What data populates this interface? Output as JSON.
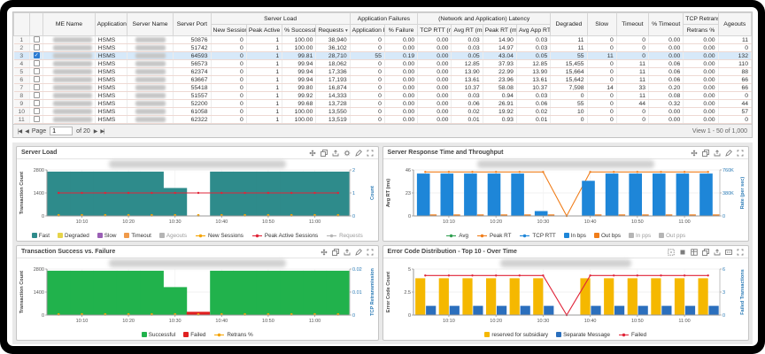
{
  "table": {
    "leading_columns": [
      "",
      "",
      "ME Name",
      "Application",
      "Server Name",
      "Server Port"
    ],
    "group_headers": {
      "server_load": "Server Load",
      "application_failures": "Application Failures",
      "latency": "(Network and Application) Latency",
      "tcp_retransmission": "TCP Retransmi"
    },
    "sub_columns": [
      "New Sessions",
      "Peak Active Se",
      "% Successful",
      "Requests",
      "Application Err",
      "% Failure",
      "TCP RTT (ms)",
      "Avg RT (ms)",
      "Peak RT (ms)",
      "Avg App RT (m",
      "Retrans %"
    ],
    "trailing_columns": [
      "Degraded",
      "Slow",
      "Timeout",
      "% Timeout",
      "Ageouts"
    ],
    "requests_sort_indicator": "▾",
    "application_value": "HSMS",
    "selected_row_index": 2,
    "rows": [
      {
        "num": "1",
        "values": [
          "50876",
          "0",
          "1",
          "100.00",
          "38,940",
          "0",
          "0.00",
          "0.00",
          "0.03",
          "14.90",
          "0.03",
          "11",
          "0",
          "0",
          "0.00",
          "0.00",
          "11"
        ]
      },
      {
        "num": "2",
        "values": [
          "51742",
          "0",
          "1",
          "100.00",
          "36,102",
          "0",
          "0.00",
          "0.00",
          "0.03",
          "14.97",
          "0.03",
          "11",
          "0",
          "0",
          "0.00",
          "0.00",
          "0"
        ]
      },
      {
        "num": "3",
        "values": [
          "64593",
          "0",
          "1",
          "99.81",
          "28,710",
          "55",
          "0.19",
          "0.00",
          "0.05",
          "43.04",
          "0.05",
          "55",
          "11",
          "0",
          "0.00",
          "0.00",
          "132"
        ]
      },
      {
        "num": "4",
        "values": [
          "56573",
          "0",
          "1",
          "99.94",
          "18,062",
          "0",
          "0.00",
          "0.00",
          "12.85",
          "37.93",
          "12.85",
          "15,455",
          "0",
          "11",
          "0.06",
          "0.00",
          "110"
        ]
      },
      {
        "num": "5",
        "values": [
          "62374",
          "0",
          "1",
          "99.94",
          "17,336",
          "0",
          "0.00",
          "0.00",
          "13.90",
          "22.99",
          "13.90",
          "15,664",
          "0",
          "11",
          "0.06",
          "0.00",
          "88"
        ]
      },
      {
        "num": "6",
        "values": [
          "63667",
          "0",
          "1",
          "99.94",
          "17,193",
          "0",
          "0.00",
          "0.00",
          "13.61",
          "23.96",
          "13.61",
          "15,642",
          "0",
          "11",
          "0.06",
          "0.00",
          "66"
        ]
      },
      {
        "num": "7",
        "values": [
          "55418",
          "0",
          "1",
          "99.80",
          "16,874",
          "0",
          "0.00",
          "0.00",
          "10.37",
          "58.08",
          "10.37",
          "7,598",
          "14",
          "33",
          "0.20",
          "0.00",
          "66"
        ]
      },
      {
        "num": "8",
        "values": [
          "51557",
          "0",
          "1",
          "99.92",
          "14,333",
          "0",
          "0.00",
          "0.00",
          "0.03",
          "0.94",
          "0.03",
          "0",
          "0",
          "11",
          "0.08",
          "0.00",
          "0"
        ]
      },
      {
        "num": "9",
        "values": [
          "52200",
          "0",
          "1",
          "99.68",
          "13,728",
          "0",
          "0.00",
          "0.00",
          "0.06",
          "26.91",
          "0.06",
          "55",
          "0",
          "44",
          "0.32",
          "0.00",
          "44"
        ]
      },
      {
        "num": "10",
        "values": [
          "61058",
          "0",
          "1",
          "100.00",
          "13,550",
          "0",
          "0.00",
          "0.00",
          "0.02",
          "19.92",
          "0.02",
          "10",
          "0",
          "0",
          "0.00",
          "0.00",
          "57"
        ]
      },
      {
        "num": "11",
        "values": [
          "62322",
          "0",
          "1",
          "100.00",
          "13,519",
          "0",
          "0.00",
          "0.00",
          "0.01",
          "0.93",
          "0.01",
          "0",
          "0",
          "0",
          "0.00",
          "0.00",
          "0"
        ]
      }
    ],
    "pager": {
      "first": "|◀",
      "prev": "◀",
      "page_label": "Page",
      "page_value": "1",
      "of_label": "of 20",
      "next": "▶",
      "last": "▶|",
      "view_status": "View 1 - 50 of 1,000"
    }
  },
  "accent_colors": {
    "selection": "#d7e9f9",
    "right_axis_blue": "#2a7ab5"
  },
  "chart_data": [
    {
      "type": "bar",
      "title": "Server Load",
      "icons": [
        "move-icon",
        "clone-icon",
        "export-icon",
        "settings-icon",
        "edit-icon",
        "fullscreen-icon"
      ],
      "left": {
        "title": "Transaction Count",
        "max": 2800,
        "ticks": [
          [
            2800,
            "2800"
          ],
          [
            1400,
            "1400"
          ],
          [
            0,
            "0"
          ]
        ]
      },
      "right": {
        "title": "Count",
        "max": 2,
        "color": "#2a7ab5",
        "ticks": [
          [
            2,
            "2"
          ],
          [
            1,
            "1"
          ],
          [
            0,
            "0"
          ]
        ]
      },
      "x": {
        "n": 13,
        "ticks": [
          [
            1,
            "10:10"
          ],
          [
            3,
            "10:20"
          ],
          [
            5,
            "10:30"
          ],
          [
            7,
            "10:40"
          ],
          [
            9,
            "10:50"
          ],
          [
            11,
            "11:00"
          ]
        ]
      },
      "series": [
        {
          "name": "Fast",
          "legend": "square",
          "kind": "steparea",
          "axis": "left",
          "color": "#2e8b8b",
          "values": [
            2700,
            2700,
            2700,
            2700,
            2700,
            1700,
            0,
            2700,
            2700,
            2700,
            2700,
            2700,
            2700
          ]
        },
        {
          "name": "Degraded",
          "legend": "square",
          "kind": "none",
          "color": "#e6d44a"
        },
        {
          "name": "Slow",
          "legend": "square",
          "kind": "none",
          "color": "#9a5fb5"
        },
        {
          "name": "Timeout",
          "legend": "square",
          "kind": "none",
          "color": "#f09a4a"
        },
        {
          "name": "Ageouts",
          "legend": "square",
          "kind": "none",
          "color": "#b5b5b5",
          "dim": true
        },
        {
          "name": "New Sessions",
          "legend": "line",
          "kind": "dots",
          "axis": "left",
          "color": "#f5a300",
          "values": [
            40,
            40,
            40,
            40,
            40,
            40,
            40,
            40,
            40,
            40,
            40,
            40,
            40
          ]
        },
        {
          "name": "Peak Active Sessions",
          "legend": "line",
          "kind": "line",
          "marker": true,
          "axis": "right",
          "color": "#e02438",
          "values": [
            1,
            1,
            1,
            1,
            1,
            1,
            1,
            1,
            1,
            1,
            1,
            1,
            1
          ]
        },
        {
          "name": "Requests",
          "legend": "line",
          "kind": "none",
          "color": "#b5b5b5",
          "dim": true
        }
      ]
    },
    {
      "type": "bar",
      "title": "Server Response Time and Throughput",
      "icons": [
        "move-icon",
        "clone-icon",
        "export-icon",
        "edit-icon",
        "fullscreen-icon"
      ],
      "left": {
        "title": "Avg RT (ms)",
        "max": 46,
        "ticks": [
          [
            46,
            "46"
          ],
          [
            23,
            "23"
          ],
          [
            0,
            "0"
          ]
        ]
      },
      "right": {
        "title": "Rate (per sec)",
        "max": 760,
        "color": "#2a7ab5",
        "ticks": [
          [
            760,
            "760K"
          ],
          [
            380,
            "380K"
          ],
          [
            0,
            "0"
          ]
        ]
      },
      "x": {
        "n": 13,
        "ticks": [
          [
            1,
            "10:10"
          ],
          [
            3,
            "10:20"
          ],
          [
            5,
            "10:30"
          ],
          [
            7,
            "10:40"
          ],
          [
            9,
            "10:50"
          ],
          [
            11,
            "11:00"
          ]
        ]
      },
      "series": [
        {
          "name": "Avg",
          "legend": "line",
          "kind": "none",
          "color": "#2e9e4f"
        },
        {
          "name": "Peak RT",
          "legend": "line",
          "kind": "line",
          "marker": true,
          "axis": "left",
          "color": "#f07d1a",
          "values": [
            44,
            44,
            44,
            44,
            44,
            44,
            0,
            44,
            44,
            44,
            44,
            44,
            44
          ]
        },
        {
          "name": "TCP RTT",
          "legend": "line",
          "kind": "none",
          "color": "#1e86d8"
        },
        {
          "name": "In bps",
          "legend": "square",
          "kind": "bars",
          "axis": "right",
          "color": "#1e86d8",
          "width": 0.55,
          "offset": -0.08,
          "values": [
            700,
            700,
            700,
            700,
            700,
            80,
            0,
            580,
            700,
            700,
            700,
            700,
            700
          ]
        },
        {
          "name": "Out bps",
          "legend": "square",
          "kind": "bars",
          "axis": "right",
          "color": "#f07d1a",
          "width": 0.28,
          "offset": 0.34,
          "values": [
            25,
            25,
            25,
            25,
            25,
            25,
            0,
            25,
            25,
            25,
            25,
            25,
            25
          ]
        },
        {
          "name": "In pps",
          "legend": "square",
          "kind": "none",
          "color": "#b5b5b5",
          "dim": true
        },
        {
          "name": "Out pps",
          "legend": "square",
          "kind": "none",
          "color": "#b5b5b5",
          "dim": true
        }
      ]
    },
    {
      "type": "bar",
      "title": "Transaction Success vs. Failure",
      "icons": [
        "move-icon",
        "clone-icon",
        "export-icon",
        "edit-icon",
        "fullscreen-icon"
      ],
      "left": {
        "title": "Transaction Count",
        "max": 2800,
        "ticks": [
          [
            2800,
            "2800"
          ],
          [
            1400,
            "1400"
          ],
          [
            0,
            "0"
          ]
        ]
      },
      "right": {
        "title": "TCP Retransmission",
        "max": 0.02,
        "color": "#2a7ab5",
        "ticks": [
          [
            0.02,
            "0.02"
          ],
          [
            0.01,
            "0.01"
          ],
          [
            0,
            "0"
          ]
        ]
      },
      "x": {
        "n": 13,
        "ticks": [
          [
            1,
            "10:10"
          ],
          [
            3,
            "10:20"
          ],
          [
            5,
            "10:30"
          ],
          [
            7,
            "10:40"
          ],
          [
            9,
            "10:50"
          ],
          [
            11,
            "11:00"
          ]
        ]
      },
      "series": [
        {
          "name": "Successful",
          "legend": "square",
          "kind": "steparea",
          "axis": "left",
          "color": "#21b24c",
          "values": [
            2700,
            2700,
            2700,
            2700,
            2700,
            1700,
            0,
            2700,
            2700,
            2700,
            2700,
            2700,
            2700
          ]
        },
        {
          "name": "Failed",
          "legend": "square",
          "kind": "bars",
          "axis": "left",
          "color": "#e02020",
          "width": 1.0,
          "offset": 0,
          "values": [
            0,
            0,
            0,
            0,
            0,
            0,
            200,
            0,
            0,
            0,
            0,
            0,
            0
          ]
        },
        {
          "name": "Retrans %",
          "legend": "line",
          "kind": "dots",
          "axis": "left",
          "color": "#f5a300",
          "values": [
            40,
            40,
            40,
            40,
            40,
            40,
            40,
            40,
            40,
            40,
            40,
            40,
            40
          ]
        }
      ]
    },
    {
      "type": "bar",
      "title": "Error Code Distribution - Top 10 - Over Time",
      "icons": [
        "select-icon",
        "stop-icon",
        "grid-icon",
        "clone-icon",
        "export-icon",
        "data-icon",
        "fullscreen-icon"
      ],
      "left": {
        "title": "Error Code Count",
        "max": 5,
        "ticks": [
          [
            5,
            "5"
          ],
          [
            2.5,
            "2.5"
          ],
          [
            0,
            "0"
          ]
        ]
      },
      "right": {
        "title": "Failed Transactions",
        "max": 6,
        "color": "#2a7ab5",
        "ticks": [
          [
            6,
            "6"
          ],
          [
            3,
            "3"
          ],
          [
            0,
            "0"
          ]
        ]
      },
      "x": {
        "n": 13,
        "ticks": [
          [
            1,
            "10:10"
          ],
          [
            3,
            "10:20"
          ],
          [
            5,
            "10:30"
          ],
          [
            7,
            "10:40"
          ],
          [
            9,
            "10:50"
          ],
          [
            11,
            "11:00"
          ]
        ]
      },
      "series": [
        {
          "name": "reserved for subsidiary",
          "legend": "square",
          "kind": "bars",
          "axis": "left",
          "color": "#f5b800",
          "width": 0.42,
          "offset": -0.21,
          "values": [
            4,
            4,
            4,
            4,
            4,
            4,
            0,
            4,
            4,
            4,
            4,
            4,
            4
          ]
        },
        {
          "name": "Separate Message",
          "legend": "square",
          "kind": "bars",
          "axis": "left",
          "color": "#2b6fbd",
          "width": 0.42,
          "offset": 0.24,
          "values": [
            1,
            1,
            1,
            1,
            1,
            1,
            0,
            1,
            1,
            1,
            1,
            1,
            1
          ]
        },
        {
          "name": "Failed",
          "legend": "line",
          "kind": "line",
          "marker": true,
          "axis": "left",
          "color": "#e02438",
          "values": [
            4.3,
            4.3,
            4.3,
            4.3,
            4.3,
            4.3,
            0,
            4.3,
            4.3,
            4.3,
            4.3,
            4.3,
            4.3
          ]
        }
      ]
    }
  ]
}
